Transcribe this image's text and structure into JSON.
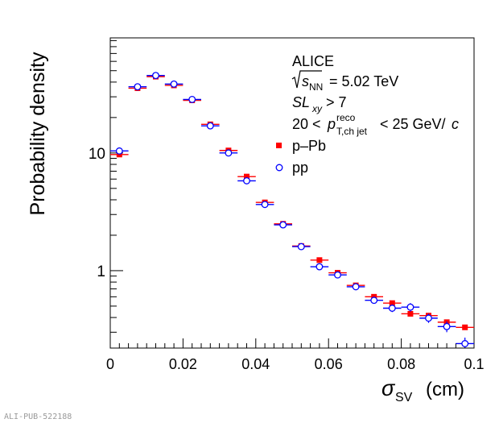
{
  "chart_data": {
    "type": "scatter",
    "xlabel_sym": "σ",
    "xlabel_sub": "SV",
    "xlabel_unit": "(cm)",
    "ylabel": "Probability density",
    "xlim": [
      0,
      0.1
    ],
    "ylim": [
      0.22,
      95
    ],
    "yscale": "log",
    "x_tick_labels": [
      "0",
      "0.02",
      "0.04",
      "0.06",
      "0.08",
      "0.1"
    ],
    "x_tick_values": [
      0,
      0.02,
      0.04,
      0.06,
      0.08,
      0.1
    ],
    "y_tick_labels": [
      "1",
      "10"
    ],
    "y_tick_values": [
      1,
      10
    ],
    "annotations": {
      "experiment": "ALICE",
      "energy_sym": "s",
      "energy_sub": "NN",
      "energy_val": "= 5.02 TeV",
      "sl_text": "SL",
      "sl_sub": "xy",
      "sl_rest": "> 7",
      "pt_pre": "20 <",
      "pt_sym": "p",
      "pt_sup": "reco",
      "pt_sub": "T,ch jet",
      "pt_post": "< 25 GeV/",
      "pt_c": "c"
    },
    "legend_position": "top-right",
    "bin_half_width": 0.0025,
    "x": [
      0.0025,
      0.0075,
      0.0125,
      0.0175,
      0.0225,
      0.0275,
      0.0325,
      0.0375,
      0.0425,
      0.0475,
      0.0525,
      0.0575,
      0.0625,
      0.0675,
      0.0725,
      0.0775,
      0.0825,
      0.0875,
      0.0925,
      0.0975
    ],
    "series": [
      {
        "name": "p–Pb",
        "color": "#ff0000",
        "marker": "filled-square",
        "values": [
          9.7,
          35.5,
          44.5,
          37.5,
          28.0,
          17.5,
          10.5,
          6.3,
          3.8,
          2.5,
          1.62,
          1.23,
          0.96,
          0.75,
          0.6,
          0.53,
          0.43,
          0.415,
          0.365,
          0.33
        ]
      },
      {
        "name": "pp",
        "color": "#0000ff",
        "marker": "open-circle",
        "values": [
          10.4,
          36.5,
          45.5,
          38.5,
          28.5,
          17.0,
          10.0,
          5.8,
          3.65,
          2.45,
          1.6,
          1.08,
          0.92,
          0.73,
          0.56,
          0.48,
          0.49,
          0.395,
          0.335,
          0.24
        ],
        "y_err": [
          0.2,
          0.6,
          0.7,
          0.6,
          0.5,
          0.35,
          0.25,
          0.15,
          0.1,
          0.07,
          0.05,
          0.04,
          0.04,
          0.03,
          0.035,
          0.035,
          0.04,
          0.035,
          0.035,
          0.03
        ]
      }
    ]
  },
  "footer": {
    "pub_id": "ALI-PUB-522188"
  }
}
